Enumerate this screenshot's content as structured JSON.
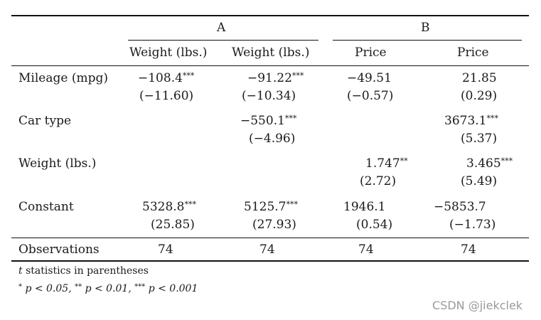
{
  "groups": {
    "a": "A",
    "b": "B"
  },
  "columns": [
    "Weight (lbs.)",
    "Weight (lbs.)",
    "Price",
    "Price"
  ],
  "rows": {
    "mileage": {
      "label": "Mileage (mpg)",
      "c1": "−108.4",
      "c1_stars": "***",
      "c1_t": "(−11.60)",
      "c2": "−91.22",
      "c2_stars": "***",
      "c2_t": "(−10.34)",
      "c3": "−49.51",
      "c3_t": "(−0.57)",
      "c4": "21.85",
      "c4_t": "(0.29)"
    },
    "cartype": {
      "label": "Car type",
      "c2": "−550.1",
      "c2_stars": "***",
      "c2_t": "(−4.96)",
      "c4": "3673.1",
      "c4_stars": "***",
      "c4_t": "(5.37)"
    },
    "weight": {
      "label": "Weight (lbs.)",
      "c3": "1.747",
      "c3_stars": "**",
      "c3_t": "(2.72)",
      "c4": "3.465",
      "c4_stars": "***",
      "c4_t": "(5.49)"
    },
    "constant": {
      "label": "Constant",
      "c1": "5328.8",
      "c1_stars": "***",
      "c1_t": "(25.85)",
      "c2": "5125.7",
      "c2_stars": "***",
      "c2_t": "(27.93)",
      "c3": "1946.1",
      "c3_t": "(0.54)",
      "c4": "−5853.7",
      "c4_t": "(−1.73)"
    }
  },
  "observations": {
    "label": "Observations",
    "values": [
      "74",
      "74",
      "74",
      "74"
    ]
  },
  "notes": {
    "line1_var": "t",
    "line1_text": "statistics in parentheses",
    "line2": {
      "s1": "*",
      "p1": "p < 0.05,",
      "s2": "**",
      "p2": "p < 0.01,",
      "s3": "***",
      "p3": "p < 0.001"
    }
  },
  "watermark": "CSDN @jiekclek"
}
